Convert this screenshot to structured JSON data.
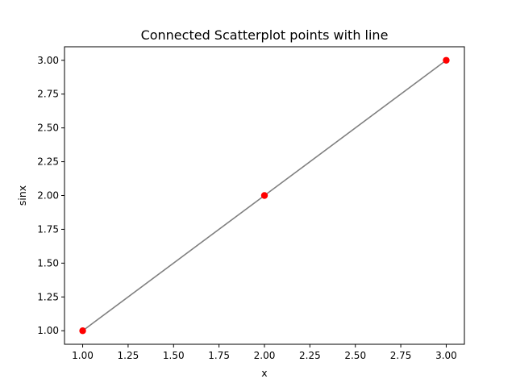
{
  "chart_data": {
    "type": "scatter",
    "title": "Connected Scatterplot points with line",
    "xlabel": "x",
    "ylabel": "sinx",
    "xlim": [
      0.9,
      3.1
    ],
    "ylim": [
      0.9,
      3.1
    ],
    "x_ticks": [
      1.0,
      1.25,
      1.5,
      1.75,
      2.0,
      2.25,
      2.5,
      2.75,
      3.0
    ],
    "x_tick_labels": [
      "1.00",
      "1.25",
      "1.50",
      "1.75",
      "2.00",
      "2.25",
      "2.50",
      "2.75",
      "3.00"
    ],
    "y_ticks": [
      1.0,
      1.25,
      1.5,
      1.75,
      2.0,
      2.25,
      2.5,
      2.75,
      3.0
    ],
    "y_tick_labels": [
      "1.00",
      "1.25",
      "1.50",
      "1.75",
      "2.00",
      "2.25",
      "2.50",
      "2.75",
      "3.00"
    ],
    "grid": false,
    "legend": null,
    "series": [
      {
        "x": [
          1,
          2,
          3
        ],
        "y": [
          1,
          2,
          3
        ],
        "line_color": "#808080",
        "marker_color": "#ff0000"
      }
    ]
  }
}
